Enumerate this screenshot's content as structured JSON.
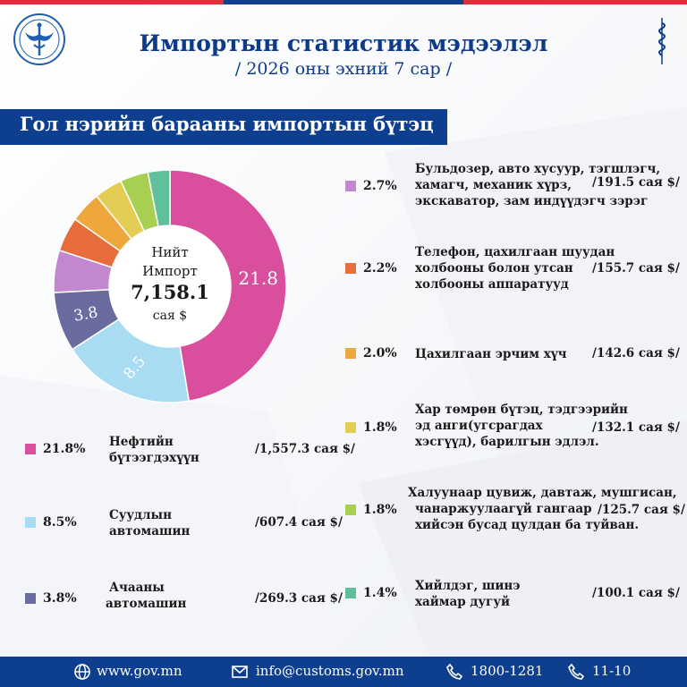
{
  "header": {
    "title": "Импортын статистик мэдээлэл",
    "subtitle": "/ 2026 оны эхний 7 сар /"
  },
  "section": {
    "title": "Гол нэрийн барааны импортын бүтэц"
  },
  "donut_center": {
    "line1": "Нийт",
    "line2": "Импорт",
    "total": "7,158.1",
    "unit": "сая $"
  },
  "chart_data": {
    "type": "pie",
    "donut": true,
    "total": 7158.1,
    "unit": "сая $",
    "slices": [
      {
        "pct": 21.8,
        "pct_label": "21.8%",
        "label": "Нефтийн бүтээгдэхүүн",
        "value": 1557.3,
        "value_label": "/1,557.3 сая $/",
        "color": "#d94f9e",
        "slice_label": "21.8"
      },
      {
        "pct": 8.5,
        "pct_label": "8.5%",
        "label": "Суудлын автомашин",
        "value": 607.4,
        "value_label": "/607.4 сая $/",
        "color": "#a9dcf3",
        "slice_label": "8.5"
      },
      {
        "pct": 3.8,
        "pct_label": "3.8%",
        "label": "Ачааны автомашин",
        "value": 269.3,
        "value_label": "/269.3 сая $/",
        "color": "#6a6b9f",
        "slice_label": "3.8"
      },
      {
        "pct": 2.7,
        "pct_label": "2.7%",
        "label": "Бульдозер, авто хусуур, тэгшлэгч, хамагч, механик хүрз, экскаватор, зам индүүдэгч зэрэг",
        "value": 191.5,
        "value_label": "/191.5 сая $/",
        "color": "#c287cc",
        "slice_label": ""
      },
      {
        "pct": 2.2,
        "pct_label": "2.2%",
        "label": "Телефон, цахилгаан шуудан холбооны болон утсан холбооны аппаратууд",
        "value": 155.7,
        "value_label": "/155.7 сая $/",
        "color": "#e76d3c",
        "slice_label": ""
      },
      {
        "pct": 2.0,
        "pct_label": "2.0%",
        "label": "Цахилгаан эрчим хүч",
        "value": 142.6,
        "value_label": "/142.6 сая $/",
        "color": "#eda73c",
        "slice_label": ""
      },
      {
        "pct": 1.8,
        "pct_label": "1.8%",
        "label": "Хар төмрөн бүтэц, тэдгээрийн эд анги(угсрагдах хэсгүүд), барилгын эдлэл.",
        "value": 132.1,
        "value_label": "/132.1 сая $/",
        "color": "#e3cd55",
        "slice_label": ""
      },
      {
        "pct": 1.8,
        "pct_label": "1.8%",
        "label": "Халуунаар цувиж, давтаж, мушгисан, чанаржуулаагүй гангаар хийсэн бусад цулдан ба туйван.",
        "value": 125.7,
        "value_label": "/125.7 сая $/",
        "color": "#a7cf52",
        "slice_label": ""
      },
      {
        "pct": 1.4,
        "pct_label": "1.4%",
        "label": "Хийлдэг, шинэ хаймар дугуй",
        "value": 100.1,
        "value_label": "/100.1 сая $/",
        "color": "#5fc09c",
        "slice_label": ""
      }
    ]
  },
  "legend_lines": {
    "l0": [
      "Нефтийн",
      "бүтээгдэхүүн"
    ],
    "l1": [
      "Суудлын",
      "автомашин"
    ],
    "l2": [
      "Ачааны",
      "автомашин"
    ],
    "l3": [
      "Бульдозер, авто хусуур, тэгшлэгч,",
      "хамагч, механик хүрз,",
      "экскаватор, зам индүүдэгч зэрэг"
    ],
    "l4": [
      "Телефон, цахилгаан шуудан",
      "холбооны болон утсан",
      "холбооны аппаратууд"
    ],
    "l5": [
      "Цахилгаан эрчим хүч"
    ],
    "l6": [
      "Хар төмрөн бүтэц, тэдгээрийн",
      "эд анги(угсрагдах",
      "хэсгүүд), барилгын эдлэл."
    ],
    "l7": [
      "Халуунаар цувиж, давтаж, мушгисан,",
      "чанаржуулаагүй гангаар",
      "хийсэн бусад цулдан ба туйван."
    ],
    "l8": [
      "Хийлдэг, шинэ",
      "хаймар дугуй"
    ]
  },
  "footer": {
    "web": "www.gov.mn",
    "email": "info@customs.gov.mn",
    "phone1": "1800-1281",
    "phone2": "11-10"
  },
  "colors": {
    "brand_blue": "#0e3f8f",
    "top_red": "#d8323a"
  },
  "icons": [
    "customs-logo-icon",
    "mongolian-script-icon",
    "globe-icon",
    "mail-icon",
    "phone-icon"
  ]
}
